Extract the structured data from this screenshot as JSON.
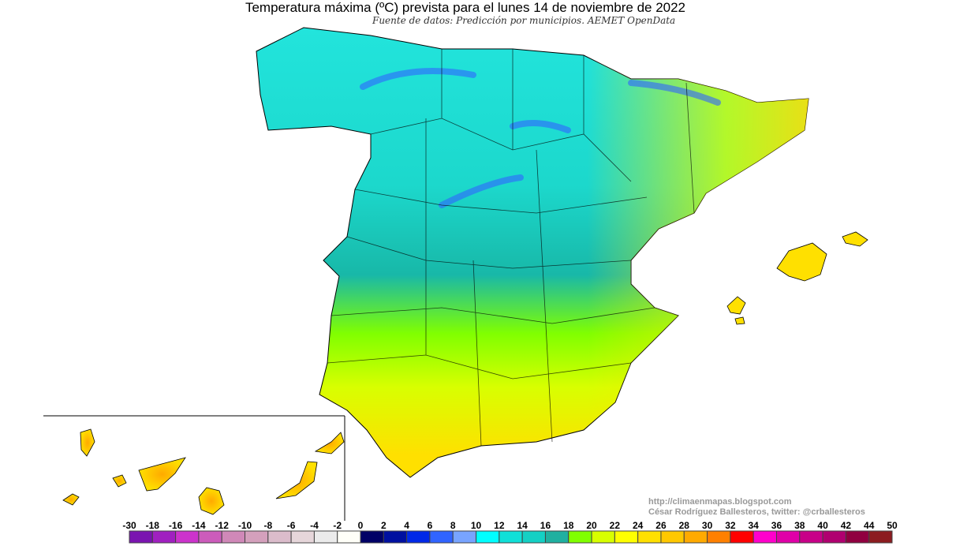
{
  "title": "Temperatura máxima (ºC) prevista para el lunes 14 de noviembre de 2022",
  "subtitle": "Fuente de datos: Predicción por municipios. AEMET OpenData",
  "credits": {
    "url": "http://climaenmapas.blogspot.com",
    "author": "César Rodríguez Ballesteros, twitter: @crballesteros"
  },
  "legend": {
    "unit": "ºC",
    "labels": [
      "-30",
      "-18",
      "-16",
      "-14",
      "-12",
      "-10",
      "-8",
      "-6",
      "-4",
      "-2",
      "0",
      "2",
      "4",
      "6",
      "8",
      "10",
      "12",
      "14",
      "16",
      "18",
      "20",
      "22",
      "24",
      "26",
      "28",
      "30",
      "32",
      "34",
      "36",
      "38",
      "40",
      "42",
      "44",
      "50"
    ],
    "colors": [
      "#7a14b0",
      "#a020c0",
      "#cc33cc",
      "#cc5cbb",
      "#d088b8",
      "#d4a0bc",
      "#dbbccb",
      "#e6d6da",
      "#ebebeb",
      "#fffff8",
      "#000066",
      "#0010a0",
      "#0028e8",
      "#3064ff",
      "#78a4ff",
      "#00ffff",
      "#10e0d8",
      "#14d0c4",
      "#20b0a0",
      "#80ff00",
      "#d8ff00",
      "#ffff00",
      "#ffe000",
      "#ffc800",
      "#ffaa00",
      "#ff8000",
      "#ff0000",
      "#ff00cc",
      "#e000a8",
      "#c80088",
      "#b00070",
      "#900040",
      "#8c1c20"
    ]
  },
  "map_colors": {
    "north": "#20e0d8",
    "center": "#18b8a8",
    "south_west": "#80ff00",
    "south": "#ffe000",
    "east_coast": "#ffe000",
    "mountains": "#3064ff"
  }
}
